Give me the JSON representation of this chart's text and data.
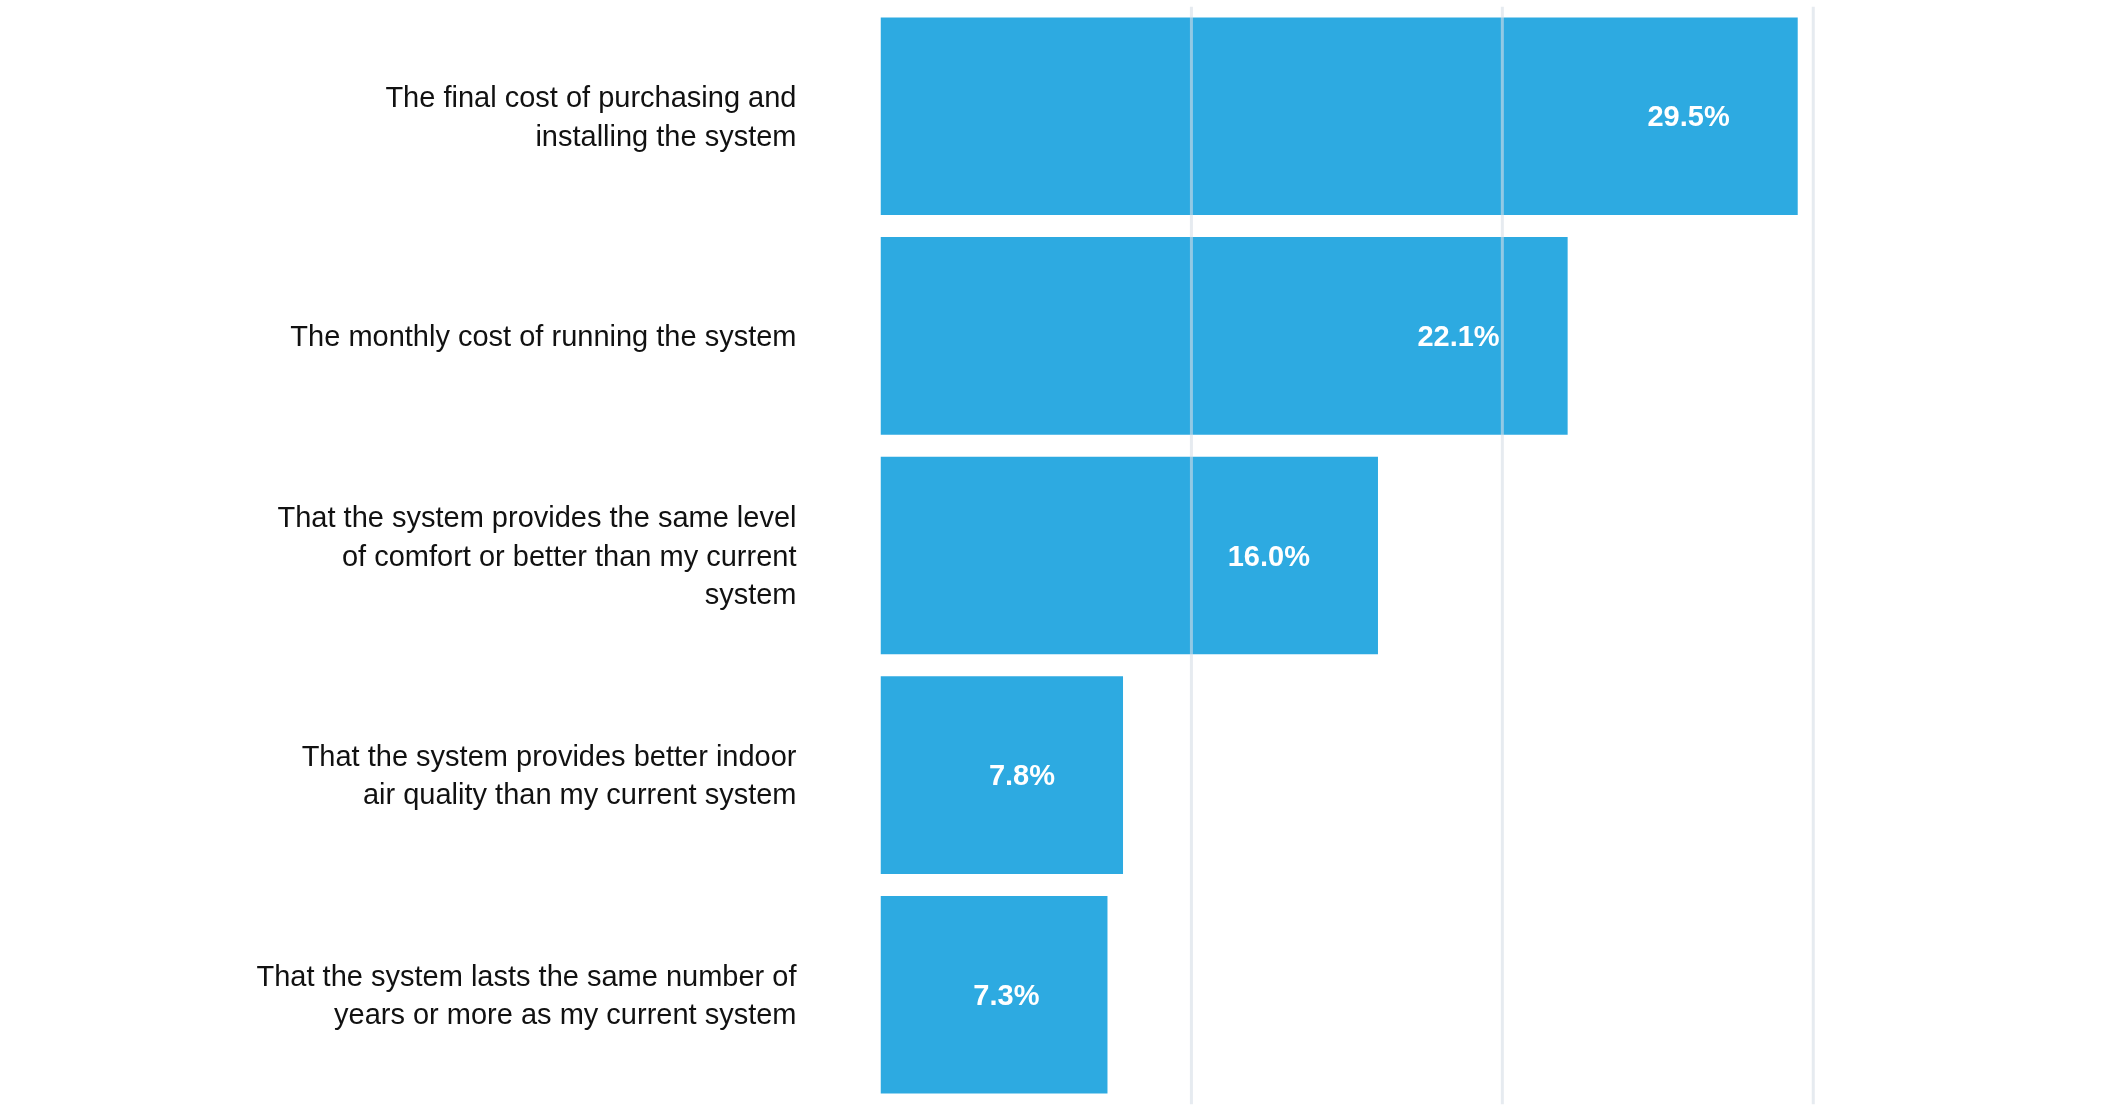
{
  "chart_data": {
    "type": "bar",
    "orientation": "horizontal",
    "categories": [
      "The final cost of purchasing and installing the system",
      "The monthly cost of running the system",
      "That the system provides the same level of comfort or better than my current system",
      "That the system provides better indoor air quality than my current system",
      "That the system lasts the same number of years or more as my current system"
    ],
    "values": [
      29.5,
      22.1,
      16.0,
      7.8,
      7.3
    ],
    "value_labels": [
      "29.5%",
      "22.1%",
      "16.0%",
      "7.8%",
      "7.3%"
    ],
    "color": "#29a8e0",
    "ref_lines": [
      {
        "axis": "x",
        "value": 10,
        "color": "#d5dde6"
      },
      {
        "axis": "x",
        "value": 20,
        "color": "#d5dde6"
      },
      {
        "axis": "x",
        "value": 30,
        "color": "#d5dde6"
      }
    ],
    "tick_labels": "y"
  }
}
